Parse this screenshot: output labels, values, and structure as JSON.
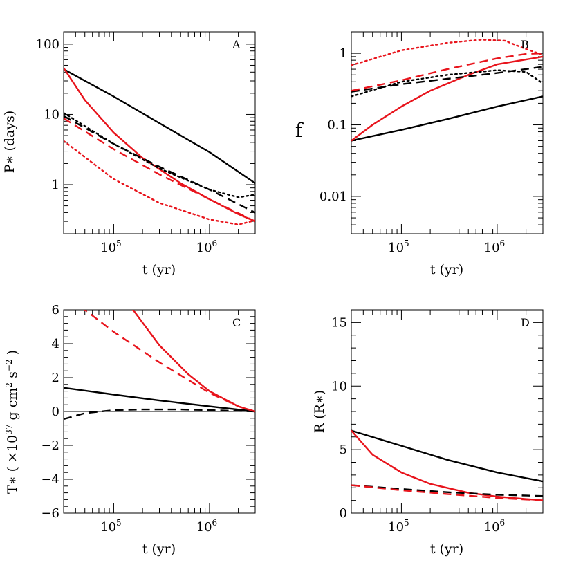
{
  "colors": {
    "black": "#000000",
    "red": "#e8141c"
  },
  "chart_data": [
    {
      "panel": "A",
      "type": "line",
      "xscale": "log",
      "yscale": "log",
      "xlim": [
        30000,
        3000000
      ],
      "ylim": [
        0.2,
        150
      ],
      "xlabel": "t (yr)",
      "ylabel": "P∗ (days)",
      "xticks": [
        {
          "value": 100000,
          "base": "10",
          "exp": "5"
        },
        {
          "value": 1000000,
          "base": "10",
          "exp": "6"
        }
      ],
      "yticks": [
        {
          "value": 1,
          "label": "1"
        },
        {
          "value": 10,
          "label": "10"
        },
        {
          "value": 100,
          "label": "100"
        }
      ],
      "series": [
        {
          "name": "black-solid",
          "color": "black",
          "style": "solid",
          "x": [
            30000,
            100000,
            300000,
            1000000,
            3000000
          ],
          "y": [
            44,
            18,
            7.5,
            2.9,
            1.05
          ]
        },
        {
          "name": "red-solid",
          "color": "red",
          "style": "solid",
          "x": [
            30000,
            50000,
            100000,
            200000,
            500000,
            1000000,
            2000000,
            3000000
          ],
          "y": [
            46,
            16,
            5.5,
            2.4,
            1.05,
            0.62,
            0.38,
            0.3
          ]
        },
        {
          "name": "black-dashed",
          "color": "black",
          "style": "dashed",
          "x": [
            30000,
            100000,
            300000,
            1000000,
            3000000
          ],
          "y": [
            9.5,
            3.8,
            1.8,
            0.85,
            0.4
          ]
        },
        {
          "name": "black-dotted",
          "color": "black",
          "style": "dotted",
          "x": [
            30000,
            100000,
            300000,
            1000000,
            2000000,
            3000000
          ],
          "y": [
            10.5,
            3.8,
            1.7,
            0.85,
            0.66,
            0.72
          ]
        },
        {
          "name": "red-dashed",
          "color": "red",
          "style": "dashed",
          "x": [
            30000,
            100000,
            300000,
            1000000,
            3000000
          ],
          "y": [
            8.8,
            3.2,
            1.4,
            0.62,
            0.3
          ]
        },
        {
          "name": "red-dotted",
          "color": "red",
          "style": "dotted",
          "x": [
            30000,
            100000,
            300000,
            1000000,
            2000000,
            3000000
          ],
          "y": [
            4.2,
            1.2,
            0.55,
            0.32,
            0.27,
            0.31
          ]
        }
      ]
    },
    {
      "panel": "B",
      "type": "line",
      "xscale": "log",
      "yscale": "log",
      "xlim": [
        30000,
        3000000
      ],
      "ylim": [
        0.003,
        2
      ],
      "xlabel": "t (yr)",
      "ylabel": "f",
      "xticks": [
        {
          "value": 100000,
          "base": "10",
          "exp": "5"
        },
        {
          "value": 1000000,
          "base": "10",
          "exp": "6"
        }
      ],
      "yticks": [
        {
          "value": 0.01,
          "label": "0.01"
        },
        {
          "value": 0.1,
          "label": "0.1"
        },
        {
          "value": 1,
          "label": "1"
        }
      ],
      "series": [
        {
          "name": "black-solid",
          "color": "black",
          "style": "solid",
          "x": [
            30000,
            100000,
            300000,
            1000000,
            3000000
          ],
          "y": [
            0.06,
            0.085,
            0.12,
            0.18,
            0.25
          ]
        },
        {
          "name": "red-solid",
          "color": "red",
          "style": "solid",
          "x": [
            30000,
            50000,
            100000,
            200000,
            500000,
            1000000,
            3000000
          ],
          "y": [
            0.06,
            0.1,
            0.18,
            0.3,
            0.5,
            0.7,
            0.9
          ]
        },
        {
          "name": "black-dashed",
          "color": "black",
          "style": "dashed",
          "x": [
            30000,
            100000,
            300000,
            1000000,
            3000000
          ],
          "y": [
            0.29,
            0.37,
            0.44,
            0.53,
            0.65
          ]
        },
        {
          "name": "black-dotted",
          "color": "black",
          "style": "dotted",
          "x": [
            30000,
            100000,
            300000,
            1000000,
            2000000,
            3000000
          ],
          "y": [
            0.25,
            0.4,
            0.5,
            0.58,
            0.55,
            0.38
          ]
        },
        {
          "name": "red-dashed",
          "color": "red",
          "style": "dashed",
          "x": [
            30000,
            100000,
            300000,
            1000000,
            2000000,
            3000000
          ],
          "y": [
            0.3,
            0.42,
            0.6,
            0.85,
            0.98,
            1.0
          ]
        },
        {
          "name": "red-dotted",
          "color": "red",
          "style": "dotted",
          "x": [
            30000,
            100000,
            300000,
            700000,
            1200000,
            2000000,
            3000000
          ],
          "y": [
            0.68,
            1.1,
            1.4,
            1.55,
            1.5,
            1.15,
            0.95
          ]
        }
      ]
    },
    {
      "panel": "C",
      "type": "line",
      "xscale": "log",
      "yscale": "linear",
      "xlim": [
        30000,
        3000000
      ],
      "ylim": [
        -6,
        6
      ],
      "xlabel": "t (yr)",
      "ylabel": "T∗ ( ×10",
      "ylabel_sup": "37",
      "ylabel_mid": " g cm",
      "ylabel_sup2": "2",
      "ylabel_mid2": " s",
      "ylabel_sup3": "−2",
      "ylabel_end": " )",
      "zero_line": true,
      "xticks": [
        {
          "value": 100000,
          "base": "10",
          "exp": "5"
        },
        {
          "value": 1000000,
          "base": "10",
          "exp": "6"
        }
      ],
      "yticks": [
        {
          "value": -6,
          "label": "−6"
        },
        {
          "value": -4,
          "label": "−4"
        },
        {
          "value": -2,
          "label": "−2"
        },
        {
          "value": 0,
          "label": "0"
        },
        {
          "value": 2,
          "label": "2"
        },
        {
          "value": 4,
          "label": "4"
        },
        {
          "value": 6,
          "label": "6"
        }
      ],
      "series": [
        {
          "name": "black-solid",
          "color": "black",
          "style": "solid",
          "x": [
            30000,
            100000,
            300000,
            1000000,
            3000000
          ],
          "y": [
            1.4,
            1.0,
            0.65,
            0.3,
            0.0
          ]
        },
        {
          "name": "black-dashed",
          "color": "black",
          "style": "dashed",
          "x": [
            30000,
            50000,
            100000,
            200000,
            500000,
            1000000,
            3000000
          ],
          "y": [
            -0.45,
            -0.1,
            0.08,
            0.12,
            0.12,
            0.08,
            0.0
          ]
        },
        {
          "name": "red-solid",
          "color": "red",
          "style": "solid",
          "x": [
            150000,
            300000,
            600000,
            1000000,
            2000000,
            3000000
          ],
          "y": [
            6.2,
            3.9,
            2.2,
            1.2,
            0.3,
            0.0
          ]
        },
        {
          "name": "red-dashed",
          "color": "red",
          "style": "dashed",
          "x": [
            45000,
            100000,
            300000,
            1000000,
            2000000,
            3000000
          ],
          "y": [
            6.2,
            4.7,
            2.9,
            1.1,
            0.3,
            0.0
          ]
        }
      ]
    },
    {
      "panel": "D",
      "type": "line",
      "xscale": "log",
      "yscale": "linear",
      "xlim": [
        30000,
        3000000
      ],
      "ylim": [
        0,
        16
      ],
      "xlabel": "t (yr)",
      "ylabel": "R (R∗)",
      "xticks": [
        {
          "value": 100000,
          "base": "10",
          "exp": "5"
        },
        {
          "value": 1000000,
          "base": "10",
          "exp": "6"
        }
      ],
      "yticks": [
        {
          "value": 0,
          "label": "0"
        },
        {
          "value": 5,
          "label": "5"
        },
        {
          "value": 10,
          "label": "10"
        },
        {
          "value": 15,
          "label": "15"
        }
      ],
      "series": [
        {
          "name": "black-solid",
          "color": "black",
          "style": "solid",
          "x": [
            30000,
            100000,
            300000,
            1000000,
            3000000
          ],
          "y": [
            6.5,
            5.3,
            4.2,
            3.2,
            2.5
          ]
        },
        {
          "name": "red-solid",
          "color": "red",
          "style": "solid",
          "x": [
            30000,
            50000,
            100000,
            200000,
            500000,
            1000000,
            3000000
          ],
          "y": [
            6.5,
            4.6,
            3.2,
            2.3,
            1.6,
            1.3,
            1.0
          ]
        },
        {
          "name": "black-dashed",
          "color": "black",
          "style": "dashed",
          "x": [
            30000,
            100000,
            300000,
            1000000,
            3000000
          ],
          "y": [
            2.2,
            1.9,
            1.65,
            1.45,
            1.35
          ]
        },
        {
          "name": "red-dashed",
          "color": "red",
          "style": "dashed",
          "x": [
            30000,
            100000,
            300000,
            1000000,
            3000000
          ],
          "y": [
            2.2,
            1.8,
            1.5,
            1.2,
            1.0
          ]
        }
      ]
    }
  ]
}
